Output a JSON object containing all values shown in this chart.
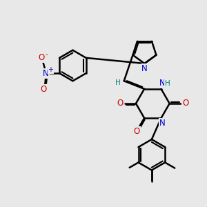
{
  "bg_color": "#e8e8e8",
  "bond_color": "#000000",
  "bond_width": 1.8,
  "dbo": 0.055,
  "atom_colors": {
    "N": "#0000cc",
    "O": "#cc0000",
    "H": "#008080",
    "C": "#000000",
    "plus": "#0000cc",
    "minus": "#cc0000"
  },
  "fs": 8.5,
  "fs2": 7.0
}
